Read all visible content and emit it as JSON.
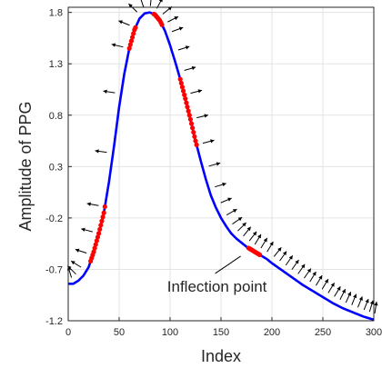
{
  "chart_data": {
    "type": "line",
    "title": "",
    "xlabel": "Index",
    "ylabel": "Amplitude of PPG",
    "xlim": [
      0,
      300
    ],
    "ylim": [
      -1.2,
      1.85
    ],
    "xticks": [
      "0",
      "50",
      "100",
      "150",
      "200",
      "250",
      "300"
    ],
    "yticks": [
      "-1.2",
      "-0.7",
      "-0.2",
      "0.3",
      "0.8",
      "1.3",
      "1.8"
    ],
    "grid": true,
    "series": [
      {
        "type": "line",
        "color": "#0000ff",
        "x": [
          0,
          5,
          10,
          15,
          20,
          25,
          30,
          35,
          40,
          45,
          50,
          55,
          60,
          65,
          70,
          75,
          80,
          85,
          90,
          95,
          100,
          105,
          110,
          115,
          120,
          125,
          130,
          135,
          140,
          145,
          150,
          155,
          160,
          165,
          170,
          175,
          180,
          185,
          190,
          195,
          200,
          210,
          220,
          230,
          240,
          250,
          260,
          270,
          280,
          290,
          300
        ],
        "y": [
          -0.84,
          -0.84,
          -0.81,
          -0.76,
          -0.68,
          -0.53,
          -0.35,
          -0.15,
          0.15,
          0.5,
          0.88,
          1.2,
          1.45,
          1.63,
          1.74,
          1.79,
          1.8,
          1.78,
          1.72,
          1.62,
          1.48,
          1.32,
          1.15,
          0.96,
          0.76,
          0.55,
          0.36,
          0.18,
          0.02,
          -0.1,
          -0.2,
          -0.28,
          -0.35,
          -0.4,
          -0.44,
          -0.48,
          -0.51,
          -0.54,
          -0.57,
          -0.6,
          -0.64,
          -0.71,
          -0.78,
          -0.85,
          -0.91,
          -0.97,
          -1.03,
          -1.08,
          -1.12,
          -1.16,
          -1.19
        ]
      },
      {
        "type": "scatter",
        "color": "#ff0000",
        "segments": [
          {
            "x_start": 22,
            "x_end": 36
          },
          {
            "x_start": 60,
            "x_end": 66
          },
          {
            "x_start": 84,
            "x_end": 92
          },
          {
            "x_start": 110,
            "x_end": 126
          },
          {
            "x_start": 177,
            "x_end": 188
          }
        ]
      },
      {
        "type": "arrows",
        "color": "#000000",
        "x": [
          5,
          12,
          18,
          24,
          30,
          36,
          44,
          52,
          60,
          66,
          72,
          76,
          80,
          84,
          88,
          92,
          96,
          102,
          108,
          114,
          120,
          126,
          132,
          138,
          144,
          150,
          156,
          162,
          168,
          174,
          180,
          186,
          192,
          198,
          204,
          210,
          216,
          222,
          228,
          234,
          240,
          246,
          252,
          258,
          264,
          270,
          276,
          282,
          288,
          294,
          300
        ]
      }
    ],
    "annotations": [
      {
        "text": "Inflection point",
        "point_x": 180,
        "point_y": -0.51
      }
    ]
  }
}
